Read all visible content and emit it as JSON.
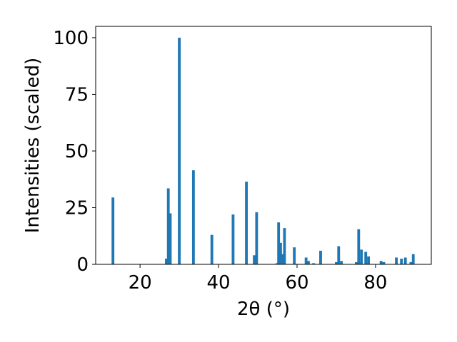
{
  "chart_data": {
    "type": "bar",
    "xlabel": "2θ (°)",
    "ylabel": "Intensities (scaled)",
    "xlim": [
      8.7,
      94.2
    ],
    "ylim": [
      0,
      105
    ],
    "xticks": [
      20,
      40,
      60,
      80
    ],
    "yticks": [
      0,
      25,
      50,
      75,
      100
    ],
    "bar_color": "#1f77b4",
    "bar_width": 0.7,
    "grid": false,
    "points": [
      {
        "x": 13.1,
        "y": 29.5
      },
      {
        "x": 26.7,
        "y": 2.5
      },
      {
        "x": 27.2,
        "y": 33.5
      },
      {
        "x": 27.7,
        "y": 22.5
      },
      {
        "x": 30.0,
        "y": 100
      },
      {
        "x": 33.6,
        "y": 41.5
      },
      {
        "x": 38.3,
        "y": 13
      },
      {
        "x": 43.7,
        "y": 22
      },
      {
        "x": 47.1,
        "y": 36.5
      },
      {
        "x": 49.1,
        "y": 4
      },
      {
        "x": 49.7,
        "y": 23
      },
      {
        "x": 54.9,
        "y": 0.5
      },
      {
        "x": 55.3,
        "y": 18.5
      },
      {
        "x": 55.8,
        "y": 9.5
      },
      {
        "x": 56.2,
        "y": 4.5
      },
      {
        "x": 56.8,
        "y": 16
      },
      {
        "x": 59.3,
        "y": 7.5
      },
      {
        "x": 62.3,
        "y": 3
      },
      {
        "x": 62.9,
        "y": 1.5
      },
      {
        "x": 64.2,
        "y": 0.5
      },
      {
        "x": 66.0,
        "y": 6
      },
      {
        "x": 70.0,
        "y": 1
      },
      {
        "x": 70.6,
        "y": 8
      },
      {
        "x": 71.3,
        "y": 1.5
      },
      {
        "x": 75.1,
        "y": 1
      },
      {
        "x": 75.7,
        "y": 15.5
      },
      {
        "x": 76.4,
        "y": 6.5
      },
      {
        "x": 77.5,
        "y": 5.5
      },
      {
        "x": 78.2,
        "y": 3.5
      },
      {
        "x": 81.4,
        "y": 1.5
      },
      {
        "x": 82.1,
        "y": 1
      },
      {
        "x": 85.3,
        "y": 3
      },
      {
        "x": 86.6,
        "y": 2.5
      },
      {
        "x": 87.6,
        "y": 3
      },
      {
        "x": 89.0,
        "y": 1
      },
      {
        "x": 89.6,
        "y": 4.5
      }
    ]
  }
}
